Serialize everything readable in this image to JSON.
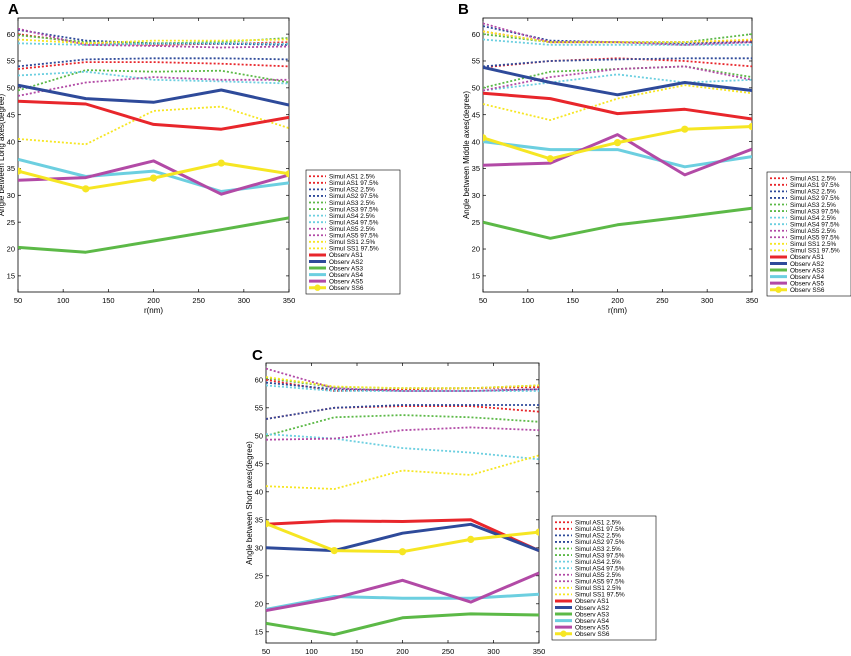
{
  "colors": {
    "AS1": "#e8262b",
    "AS2": "#2e4a9a",
    "AS3": "#5cb947",
    "AS4": "#6ccfe0",
    "AS5": "#b24aa6",
    "SS1": "#f6e623"
  },
  "chart_data": [
    {
      "type": "line",
      "panel_label": "A",
      "xlabel": "r(nm)",
      "ylabel": "Angle between Long axes(degree)",
      "x": [
        50,
        125,
        200,
        275,
        350
      ],
      "xlim": [
        50,
        350
      ],
      "ylim": [
        12,
        63
      ],
      "xticks": [
        50,
        100,
        150,
        200,
        250,
        300,
        350
      ],
      "yticks": [
        15,
        20,
        25,
        30,
        35,
        40,
        45,
        50,
        55,
        60
      ],
      "legend_position": "right",
      "series": [
        {
          "name": "Simul AS1 2.5%",
          "key": "AS1",
          "style": "dotted",
          "values": [
            53.5,
            54.8,
            54.8,
            54.5,
            54.0
          ]
        },
        {
          "name": "Simul AS1 97.5%",
          "key": "AS1",
          "style": "dotted",
          "values": [
            60.0,
            58.3,
            58.0,
            58.2,
            58.5
          ]
        },
        {
          "name": "Simul AS2 2.5%",
          "key": "AS2",
          "style": "dotted",
          "values": [
            54.0,
            55.3,
            55.5,
            55.5,
            55.3
          ]
        },
        {
          "name": "Simul AS2 97.5%",
          "key": "AS2",
          "style": "dotted",
          "values": [
            60.8,
            58.8,
            58.3,
            58.2,
            58.0
          ]
        },
        {
          "name": "Simul AS3 2.5%",
          "key": "AS3",
          "style": "dotted",
          "values": [
            49.5,
            53.3,
            53.0,
            53.2,
            51.0
          ]
        },
        {
          "name": "Simul AS3 97.5%",
          "key": "AS3",
          "style": "dotted",
          "values": [
            59.8,
            58.5,
            58.3,
            58.5,
            59.3
          ]
        },
        {
          "name": "Simul AS4 2.5%",
          "key": "AS4",
          "style": "dotted",
          "values": [
            52.3,
            53.0,
            51.5,
            51.2,
            50.8
          ]
        },
        {
          "name": "Simul AS4 97.5%",
          "key": "AS4",
          "style": "dotted",
          "values": [
            58.3,
            58.0,
            58.2,
            58.3,
            58.2
          ]
        },
        {
          "name": "Simul AS5 2.5%",
          "key": "AS5",
          "style": "dotted",
          "values": [
            48.5,
            51.0,
            52.0,
            51.5,
            51.5
          ]
        },
        {
          "name": "Simul AS5 97.5%",
          "key": "AS5",
          "style": "dotted",
          "values": [
            61.0,
            58.0,
            57.8,
            57.5,
            57.7
          ]
        },
        {
          "name": "Simul SS1 2.5%",
          "key": "SS1",
          "style": "dotted",
          "values": [
            40.5,
            39.5,
            45.7,
            46.5,
            42.5
          ]
        },
        {
          "name": "Simul SS1 97.5%",
          "key": "SS1",
          "style": "dotted",
          "values": [
            59.0,
            58.3,
            58.8,
            58.8,
            59.0
          ]
        },
        {
          "name": "Observ AS1",
          "key": "AS1",
          "style": "solid",
          "values": [
            47.5,
            47.0,
            43.2,
            42.3,
            44.5
          ]
        },
        {
          "name": "Observ AS2",
          "key": "AS2",
          "style": "solid",
          "values": [
            50.5,
            48.0,
            47.3,
            49.6,
            46.8
          ]
        },
        {
          "name": "Observ AS3",
          "key": "AS3",
          "style": "solid",
          "values": [
            20.3,
            19.4,
            21.5,
            23.6,
            25.8
          ]
        },
        {
          "name": "Observ AS4",
          "key": "AS4",
          "style": "solid",
          "values": [
            36.7,
            33.5,
            34.5,
            30.7,
            32.3
          ]
        },
        {
          "name": "Observ AS5",
          "key": "AS5",
          "style": "solid",
          "values": [
            32.8,
            33.3,
            36.4,
            30.2,
            33.8
          ]
        },
        {
          "name": "Observ SS6",
          "key": "SS1",
          "style": "solid",
          "marker": "circle",
          "values": [
            34.5,
            31.2,
            33.2,
            36.0,
            34.0
          ]
        }
      ]
    },
    {
      "type": "line",
      "panel_label": "B",
      "xlabel": "r(nm)",
      "ylabel": "Angle between Middle axes(degree)",
      "x": [
        50,
        125,
        200,
        275,
        350
      ],
      "xlim": [
        50,
        350
      ],
      "ylim": [
        12,
        63
      ],
      "xticks": [
        50,
        100,
        150,
        200,
        250,
        300,
        350
      ],
      "yticks": [
        15,
        20,
        25,
        30,
        35,
        40,
        45,
        50,
        55,
        60
      ],
      "legend_position": "right",
      "series": [
        {
          "name": "Simul AS1 2.5%",
          "key": "AS1",
          "style": "dotted",
          "values": [
            53.8,
            55.0,
            55.5,
            55.0,
            54.0
          ]
        },
        {
          "name": "Simul AS1 97.5%",
          "key": "AS1",
          "style": "dotted",
          "values": [
            60.5,
            58.5,
            58.5,
            58.5,
            58.8
          ]
        },
        {
          "name": "Simul AS2 2.5%",
          "key": "AS2",
          "style": "dotted",
          "values": [
            54.0,
            55.0,
            55.3,
            55.5,
            55.5
          ]
        },
        {
          "name": "Simul AS2 97.5%",
          "key": "AS2",
          "style": "dotted",
          "values": [
            61.5,
            58.8,
            58.5,
            58.3,
            58.5
          ]
        },
        {
          "name": "Simul AS3 2.5%",
          "key": "AS3",
          "style": "dotted",
          "values": [
            50.0,
            53.0,
            53.5,
            54.0,
            52.0
          ]
        },
        {
          "name": "Simul AS3 97.5%",
          "key": "AS3",
          "style": "dotted",
          "values": [
            60.0,
            58.5,
            58.5,
            58.5,
            60.0
          ]
        },
        {
          "name": "Simul AS4 2.5%",
          "key": "AS4",
          "style": "dotted",
          "values": [
            49.5,
            51.0,
            52.5,
            51.0,
            51.5
          ]
        },
        {
          "name": "Simul AS4 97.5%",
          "key": "AS4",
          "style": "dotted",
          "values": [
            59.0,
            58.0,
            58.0,
            58.0,
            58.0
          ]
        },
        {
          "name": "Simul AS5 2.5%",
          "key": "AS5",
          "style": "dotted",
          "values": [
            49.5,
            52.0,
            53.5,
            54.0,
            51.5
          ]
        },
        {
          "name": "Simul AS5 97.5%",
          "key": "AS5",
          "style": "dotted",
          "values": [
            62.0,
            58.5,
            58.5,
            58.0,
            58.5
          ]
        },
        {
          "name": "Simul SS1 2.5%",
          "key": "SS1",
          "style": "dotted",
          "values": [
            47.0,
            44.0,
            48.0,
            50.5,
            49.0
          ]
        },
        {
          "name": "Simul SS1 97.5%",
          "key": "SS1",
          "style": "dotted",
          "values": [
            60.5,
            58.5,
            58.5,
            58.5,
            59.0
          ]
        },
        {
          "name": "Observ AS1",
          "key": "AS1",
          "style": "solid",
          "values": [
            49.0,
            48.0,
            45.2,
            46.0,
            44.2
          ]
        },
        {
          "name": "Observ AS2",
          "key": "AS2",
          "style": "solid",
          "values": [
            53.8,
            51.0,
            48.7,
            51.0,
            49.5
          ]
        },
        {
          "name": "Observ AS3",
          "key": "AS3",
          "style": "solid",
          "values": [
            25.0,
            22.0,
            24.5,
            26.0,
            27.6
          ]
        },
        {
          "name": "Observ AS4",
          "key": "AS4",
          "style": "solid",
          "values": [
            40.0,
            38.5,
            38.5,
            35.3,
            37.2
          ]
        },
        {
          "name": "Observ AS5",
          "key": "AS5",
          "style": "solid",
          "values": [
            35.6,
            36.0,
            41.3,
            33.8,
            38.6
          ]
        },
        {
          "name": "Observ SS6",
          "key": "SS1",
          "style": "solid",
          "marker": "circle",
          "values": [
            40.7,
            36.8,
            39.8,
            42.3,
            42.8
          ]
        }
      ]
    },
    {
      "type": "line",
      "panel_label": "C",
      "xlabel": "r(nm)",
      "ylabel": "Angle between Short axes(degree)",
      "x": [
        50,
        125,
        200,
        275,
        350
      ],
      "xlim": [
        50,
        350
      ],
      "ylim": [
        13,
        63
      ],
      "xticks": [
        50,
        100,
        150,
        200,
        250,
        300,
        350
      ],
      "yticks": [
        15,
        20,
        25,
        30,
        35,
        40,
        45,
        50,
        55,
        60
      ],
      "legend_position": "right",
      "series": [
        {
          "name": "Simul AS1 2.5%",
          "key": "AS1",
          "style": "dotted",
          "values": [
            53.0,
            55.0,
            55.3,
            55.3,
            54.3
          ]
        },
        {
          "name": "Simul AS1 97.5%",
          "key": "AS1",
          "style": "dotted",
          "values": [
            60.0,
            58.0,
            58.3,
            58.5,
            58.7
          ]
        },
        {
          "name": "Simul AS2 2.5%",
          "key": "AS2",
          "style": "dotted",
          "values": [
            53.0,
            55.0,
            55.5,
            55.5,
            55.5
          ]
        },
        {
          "name": "Simul AS2 97.5%",
          "key": "AS2",
          "style": "dotted",
          "values": [
            59.5,
            58.3,
            58.0,
            58.0,
            58.3
          ]
        },
        {
          "name": "Simul AS3 2.5%",
          "key": "AS3",
          "style": "dotted",
          "values": [
            50.0,
            53.3,
            53.7,
            53.3,
            52.5
          ]
        },
        {
          "name": "Simul AS3 97.5%",
          "key": "AS3",
          "style": "dotted",
          "values": [
            60.3,
            58.7,
            58.5,
            58.5,
            59.0
          ]
        },
        {
          "name": "Simul AS4 2.5%",
          "key": "AS4",
          "style": "dotted",
          "values": [
            50.3,
            49.5,
            47.8,
            47.0,
            45.8
          ]
        },
        {
          "name": "Simul AS4 97.5%",
          "key": "AS4",
          "style": "dotted",
          "values": [
            59.0,
            58.0,
            58.0,
            58.0,
            58.0
          ]
        },
        {
          "name": "Simul AS5 2.5%",
          "key": "AS5",
          "style": "dotted",
          "values": [
            49.3,
            49.5,
            51.0,
            51.5,
            51.0
          ]
        },
        {
          "name": "Simul AS5 97.5%",
          "key": "AS5",
          "style": "dotted",
          "values": [
            62.0,
            58.5,
            58.0,
            58.0,
            58.3
          ]
        },
        {
          "name": "Simul SS1 2.5%",
          "key": "SS1",
          "style": "dotted",
          "values": [
            41.0,
            40.5,
            43.8,
            43.0,
            46.5
          ]
        },
        {
          "name": "Simul SS1 97.5%",
          "key": "SS1",
          "style": "dotted",
          "values": [
            60.5,
            58.8,
            58.5,
            58.5,
            59.0
          ]
        },
        {
          "name": "Observ AS1",
          "key": "AS1",
          "style": "solid",
          "values": [
            34.2,
            34.8,
            34.7,
            35.0,
            29.5
          ]
        },
        {
          "name": "Observ AS2",
          "key": "AS2",
          "style": "solid",
          "values": [
            30.0,
            29.5,
            32.6,
            34.2,
            29.5
          ]
        },
        {
          "name": "Observ AS3",
          "key": "AS3",
          "style": "solid",
          "values": [
            16.5,
            14.5,
            17.5,
            18.2,
            18.0
          ]
        },
        {
          "name": "Observ AS4",
          "key": "AS4",
          "style": "solid",
          "values": [
            19.0,
            21.3,
            21.0,
            21.0,
            21.7
          ]
        },
        {
          "name": "Observ AS5",
          "key": "AS5",
          "style": "solid",
          "values": [
            18.8,
            21.0,
            24.2,
            20.3,
            25.5
          ]
        },
        {
          "name": "Observ SS6",
          "key": "SS1",
          "style": "solid",
          "marker": "circle",
          "values": [
            34.3,
            29.5,
            29.3,
            31.5,
            32.8
          ]
        }
      ]
    }
  ]
}
